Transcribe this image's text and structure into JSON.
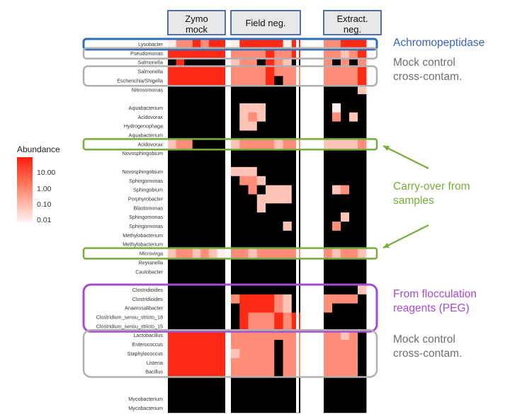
{
  "chart_data": {
    "type": "heatmap",
    "title": "",
    "xlabel": "",
    "ylabel": "",
    "group_headers": [
      {
        "name": "Zymo\nmock",
        "columns": 7
      },
      {
        "name": "Field neg.",
        "columns": 8
      },
      {
        "name": "Extract.\nneg.",
        "columns": 5
      }
    ],
    "rows": [
      "Lysobacter",
      "Pseudomonas",
      "Salmonella",
      "Salmonella",
      "Escherichia/Shigella",
      "Nitrosomonas",
      "",
      "Aquabacterium",
      "Acidovorax",
      "Hydrogenophaga",
      "Aquabacterium",
      "Acidovorax",
      "Novosphingobium",
      "",
      "Novosphingobium",
      "Sphingomonas",
      "Sphingobium",
      "Porphyrobacter",
      "Blastomonas",
      "Sphingomonas",
      "Sphingomonas",
      "Methylobacterium",
      "Methylobacterium",
      "Microvirga",
      "Reyranella",
      "Caulobacter",
      "",
      "Clostridioides",
      "Clostridioides",
      "Anaerosalibacter",
      "Clostridium_sensu_stricto_18",
      "Clostridium_sensu_stricto_15",
      "Lactobacillus",
      "Enterococcus",
      "Staphylococcus",
      "Listeria",
      "Bacillus",
      "",
      "",
      "Mycobacterium",
      "Mycobacterium"
    ],
    "color_scale": {
      "title": "Abundance",
      "ticks": [
        "10.00",
        "1.00",
        "0.10",
        "0.01"
      ],
      "colors": {
        "high": "#ff1c0e",
        "low": "#fff4f2",
        "absent": "#000000"
      }
    },
    "abundance_levels": {
      "0": "absent (black)",
      "1": "0.01",
      "2": "0.10",
      "3": "1.00",
      "4": "10.00"
    },
    "matrix": [
      "13343441444441433444",
      "44444443333433433234",
      "04000002330432030303",
      "44444443333433333334",
      "44444443333403333334",
      "00000000000000000002",
      "00000000000000000000",
      "00000000222000001000",
      "00000000232000003020",
      "00000000220000000000",
      "00000000000000000000",
      "23300002333323322223",
      "00000000000000000000",
      "00000000000000000000",
      "00000002220000000000",
      "00000000332000000000",
      "00000000030222002300",
      "00000000002222000000",
      "00000000002000000000",
      "00000000000000000200",
      "00000000000002003000",
      "00000000000000000000",
      "00000000000000000000",
      "23323213323333332332",
      "00000000000000000000",
      "00000000000000000000",
      "00000000000000000000",
      "00000000000000000002",
      "00000003444432033330",
      "00000000444432030000",
      "00000000433343400000",
      "00000000433343400000",
      "44444443333333333230",
      "44444443333303333330",
      "44444442333303333330",
      "44444443333303333330",
      "44444443333303333330",
      "00000000000000000000",
      "00000000000000000000",
      "00000000000000000000",
      "00000000000000000000"
    ]
  },
  "annotations": [
    {
      "id": "achromopeptidase",
      "text": "Achromopeptidase",
      "color": "#3a62b8"
    },
    {
      "id": "mock-cross-top",
      "text": "Mock control\ncross-contam.",
      "color": "#6f6f6f"
    },
    {
      "id": "carry-over",
      "text": "Carry-over from\nsamples",
      "color": "#77ad3a"
    },
    {
      "id": "flocculation",
      "text": "From flocculation\nreagents (PEG)",
      "color": "#a54bd1"
    },
    {
      "id": "mock-cross-bottom",
      "text": "Mock control\ncross-contam.",
      "color": "#6f6f6f"
    }
  ],
  "legend": {
    "title": "Abundance",
    "ticks": [
      "10.00",
      "1.00",
      "0.10",
      "0.01"
    ]
  }
}
